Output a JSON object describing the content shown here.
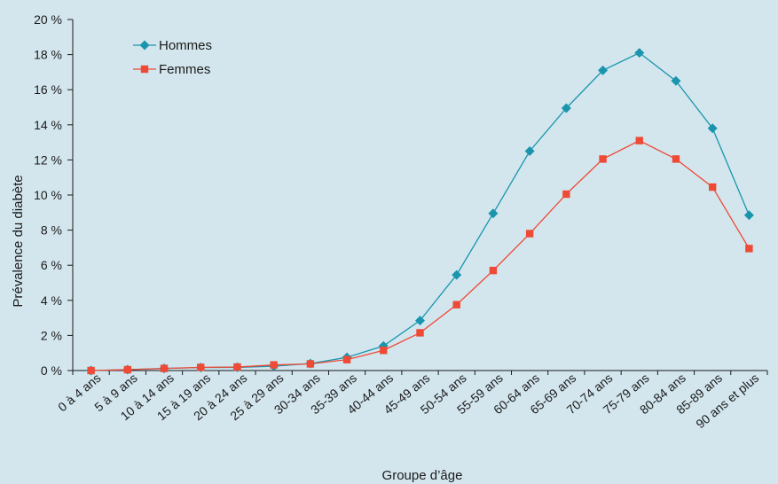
{
  "chart_data": {
    "type": "line",
    "xlabel": "Groupe d’âge",
    "ylabel": "Prévalence du diabète",
    "ylim": [
      0,
      20
    ],
    "y_ticks": [
      0,
      2,
      4,
      6,
      8,
      10,
      12,
      14,
      16,
      18,
      20
    ],
    "y_tick_labels": [
      "0 %",
      "2 %",
      "4 %",
      "6 %",
      "8 %",
      "10 %",
      "12 %",
      "14 %",
      "16 %",
      "18 %",
      "20 %"
    ],
    "grid": false,
    "legend_position": "top-left",
    "categories": [
      "0 à 4 ans",
      "5 à 9 ans",
      "10 à 14 ans",
      "15 à 19 ans",
      "20 à 24 ans",
      "25 à 29 ans",
      "30-34 ans",
      "35-39 ans",
      "40-44 ans",
      "45-49 ans",
      "50-54 ans",
      "55-59 ans",
      "60-64 ans",
      "65-69 ans",
      "70-74 ans",
      "75-79 ans",
      "80-84 ans",
      "85-89 ans",
      "90 ans et plus"
    ],
    "series": [
      {
        "name": "Hommes",
        "color": "#1a95ad",
        "marker": "diamond",
        "values": [
          0.0,
          0.05,
          0.12,
          0.17,
          0.18,
          0.25,
          0.4,
          0.75,
          1.4,
          2.85,
          5.45,
          8.95,
          12.5,
          14.95,
          17.1,
          18.1,
          16.5,
          13.8,
          8.85
        ]
      },
      {
        "name": "Femmes",
        "color": "#ee4a36",
        "marker": "square",
        "values": [
          0.0,
          0.05,
          0.12,
          0.18,
          0.2,
          0.32,
          0.38,
          0.62,
          1.15,
          2.15,
          3.75,
          5.7,
          7.8,
          10.05,
          12.05,
          13.1,
          12.05,
          10.45,
          6.95
        ]
      }
    ]
  }
}
